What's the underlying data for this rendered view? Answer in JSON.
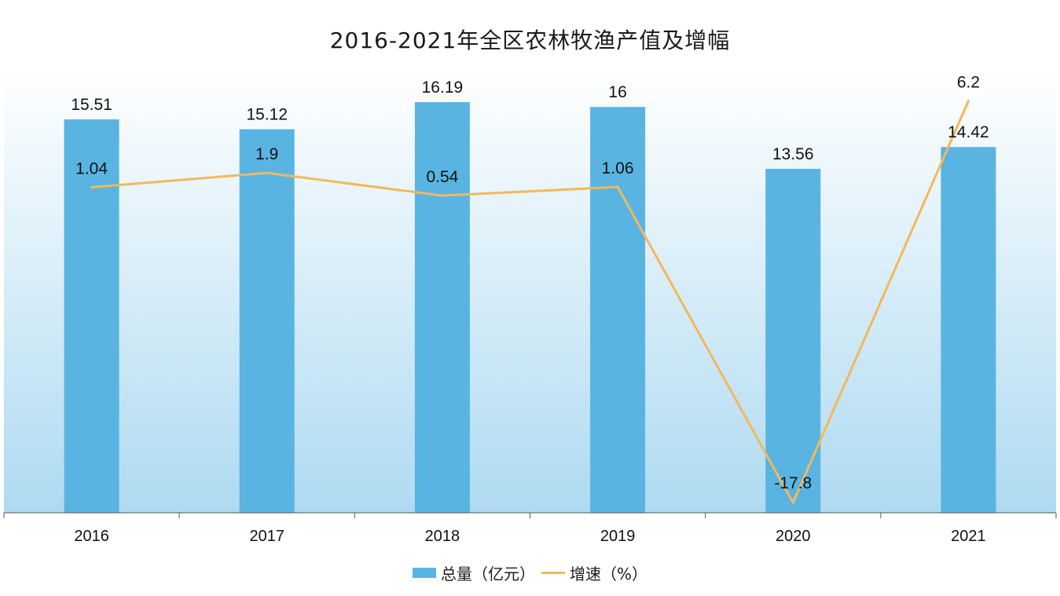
{
  "colors": {
    "bar": "#59b4e2",
    "line": "#f3b85a",
    "bg_top": "#ffffff",
    "bg_bottom": "#aedaf1",
    "axis": "#555555"
  },
  "chart_data": {
    "type": "bar",
    "title": "2016-2021年全区农林牧渔产值及增幅",
    "categories": [
      "2016",
      "2017",
      "2018",
      "2019",
      "2020",
      "2021"
    ],
    "series": [
      {
        "name": "总量（亿元）",
        "type": "bar",
        "values": [
          15.51,
          15.12,
          16.19,
          16,
          13.56,
          14.42
        ],
        "labels": [
          "15.51",
          "15.12",
          "16.19",
          "16",
          "13.56",
          "14.42"
        ]
      },
      {
        "name": "增速（%）",
        "type": "line",
        "values": [
          1.04,
          1.9,
          0.54,
          1.06,
          -17.8,
          6.2
        ],
        "labels": [
          "1.04",
          "1.9",
          "0.54",
          "1.06",
          "-17.8",
          "6.2"
        ]
      }
    ],
    "bar_axis_range": [
      0,
      17.5
    ],
    "line_axis_range": [
      -18.4,
      8.1
    ],
    "grid": false,
    "legend_position": "bottom"
  },
  "legend": {
    "bar_label": "总量（亿元）",
    "line_label": "增速（%）"
  }
}
